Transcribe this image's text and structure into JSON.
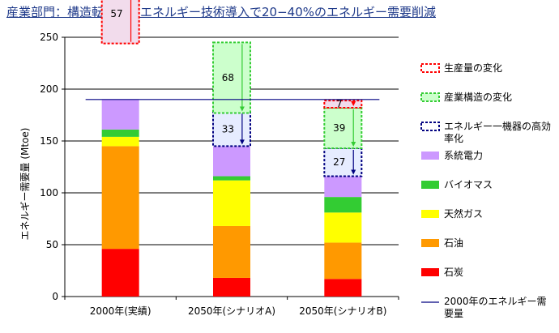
{
  "title": "産業部門：構造転換と省エネルギー技術導入で20−40%のエネルギー需要削減",
  "chart_data": {
    "type": "bar",
    "stacked": true,
    "ylabel": "エネルギー需要量 (Mtoe)",
    "ylim": [
      0,
      250
    ],
    "yticks": [
      0,
      50,
      100,
      150,
      200,
      250
    ],
    "grid": true,
    "legend_position": "right",
    "categories": [
      "2000年(実績)",
      "2050年(シナリオA)",
      "2050年(シナリオB)"
    ],
    "series": [
      {
        "name": "石炭",
        "color": "#ff0000",
        "values": [
          46,
          18,
          17
        ]
      },
      {
        "name": "石油",
        "color": "#ff9900",
        "values": [
          99,
          50,
          35
        ]
      },
      {
        "name": "天然ガス",
        "color": "#ffff00",
        "values": [
          9,
          44,
          29
        ]
      },
      {
        "name": "バイオマス",
        "color": "#33cc33",
        "values": [
          7,
          4,
          15
        ]
      },
      {
        "name": "系統電力",
        "color": "#cc99ff",
        "values": [
          29,
          29,
          20
        ]
      }
    ],
    "reductions": [
      {
        "category": "2050年(シナリオA)",
        "name": "エネルギー一機器の高効率化",
        "value": 33,
        "label": "33",
        "border": "#000080",
        "fill": "#e6ecff"
      },
      {
        "category": "2050年(シナリオA)",
        "name": "産業構造の変化",
        "value": 68,
        "label": "68",
        "border": "#33cc33",
        "fill": "#ccffcc",
        "offset": -1
      },
      {
        "category": "2050年(シナリオA)",
        "name": "生産量の変化",
        "value": 57,
        "label": "57",
        "border": "#ff0000",
        "fill": "#f2dcec",
        "side": "left",
        "offset": -1
      },
      {
        "category": "2050年(シナリオB)",
        "name": "エネルギー一機器の高効率化",
        "value": 27,
        "label": "27",
        "border": "#000080",
        "fill": "#e6ecff"
      },
      {
        "category": "2050年(シナリオB)",
        "name": "産業構造の変化",
        "value": 39,
        "label": "39",
        "border": "#33cc33",
        "fill": "#ccffcc"
      },
      {
        "category": "2050年(シナリオB)",
        "name": "生産量の変化",
        "value": 7,
        "label": "7",
        "border": "#ff0000",
        "fill": "#f2dcec"
      }
    ],
    "reference_line": {
      "name": "2000年のエネルギー需要量",
      "value": 190,
      "color": "#000080"
    },
    "legend": [
      {
        "label": "生産量の変化",
        "kind": "dashed",
        "border": "#ff0000",
        "fill": "#ffffff"
      },
      {
        "label": "産業構造の変化",
        "kind": "dashed",
        "border": "#33cc33",
        "fill": "#ccffcc"
      },
      {
        "label": "エネルギー一機器の高効率化",
        "lines": [
          "エネルギー一機器の高効",
          "率化"
        ],
        "kind": "dashed",
        "border": "#000080",
        "fill": "#ffffff"
      },
      {
        "label": "系統電力",
        "kind": "solid",
        "fill": "#cc99ff"
      },
      {
        "label": "バイオマス",
        "kind": "solid",
        "fill": "#33cc33"
      },
      {
        "label": "天然ガス",
        "kind": "solid",
        "fill": "#ffff00"
      },
      {
        "label": "石油",
        "kind": "solid",
        "fill": "#ff9900"
      },
      {
        "label": "石炭",
        "kind": "solid",
        "fill": "#ff0000"
      },
      {
        "label": "2000年のエネルギー需要量",
        "lines": [
          "2000年のエネルギー需",
          "要量"
        ],
        "kind": "line",
        "border": "#000080"
      }
    ]
  }
}
